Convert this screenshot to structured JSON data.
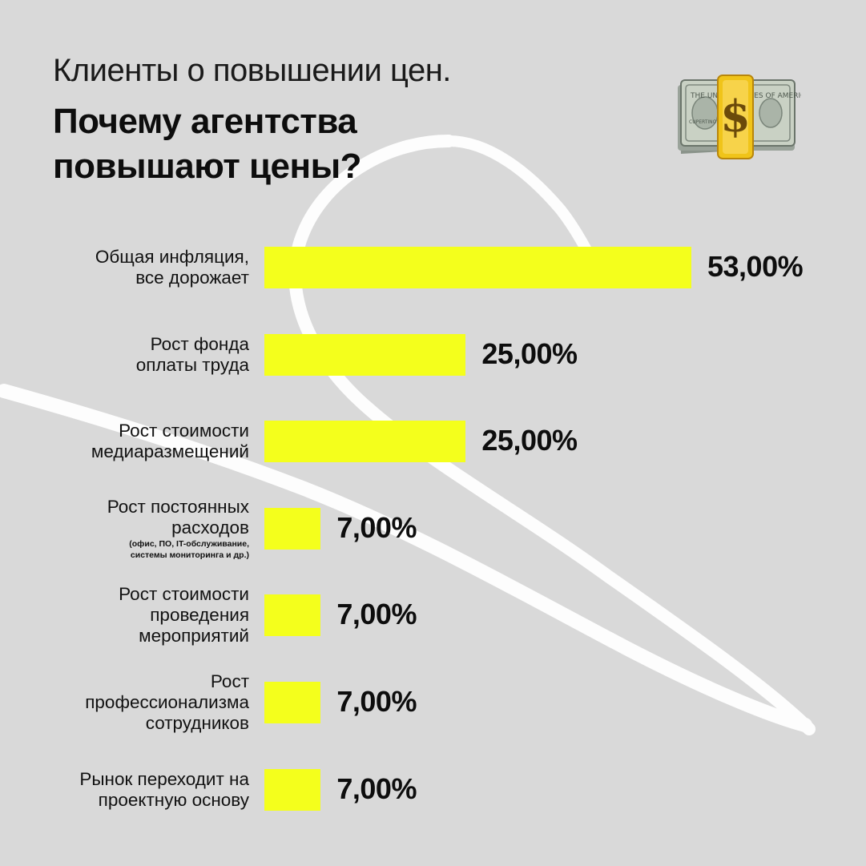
{
  "header": {
    "subtitle": "Клиенты о повышении цен.",
    "title_lines": [
      "Почему агентства",
      "повышают цены?"
    ]
  },
  "decoration": {
    "icon": "money-bag-dollar-icon",
    "icon_text": "$",
    "bill_text": "THE UNITED STATES OF AMERICA",
    "bill_city": "CUPERTINO"
  },
  "colors": {
    "background": "#d9d9d9",
    "bar": "#f4ff1c",
    "text": "#111111",
    "scribble": "#ffffff"
  },
  "chart_data": {
    "type": "bar",
    "orientation": "horizontal",
    "categories": [
      {
        "lines": [
          "Общая инфляция,",
          "все дорожает"
        ]
      },
      {
        "lines": [
          "Рост фонда",
          "оплаты труда"
        ]
      },
      {
        "lines": [
          "Рост стоимости",
          "медиаразмещений"
        ]
      },
      {
        "lines": [
          "Рост постоянных",
          "расходов"
        ],
        "note": [
          "(офис, ПО, IT-обслуживание,",
          "системы мониторинга и др.)"
        ]
      },
      {
        "lines": [
          "Рост стоимости",
          "проведения",
          "мероприятий"
        ]
      },
      {
        "lines": [
          "Рост",
          "профессионализма",
          "сотрудников"
        ]
      },
      {
        "lines": [
          "Рынок переходит на",
          "проектную основу"
        ]
      }
    ],
    "values": [
      53,
      25,
      25,
      7,
      7,
      7,
      7
    ],
    "value_labels": [
      "53,00%",
      "25,00%",
      "25,00%",
      "7,00%",
      "7,00%",
      "7,00%",
      "7,00%"
    ],
    "unit": "%",
    "xlim": [
      0,
      53
    ],
    "grid": false,
    "legend": "none"
  }
}
